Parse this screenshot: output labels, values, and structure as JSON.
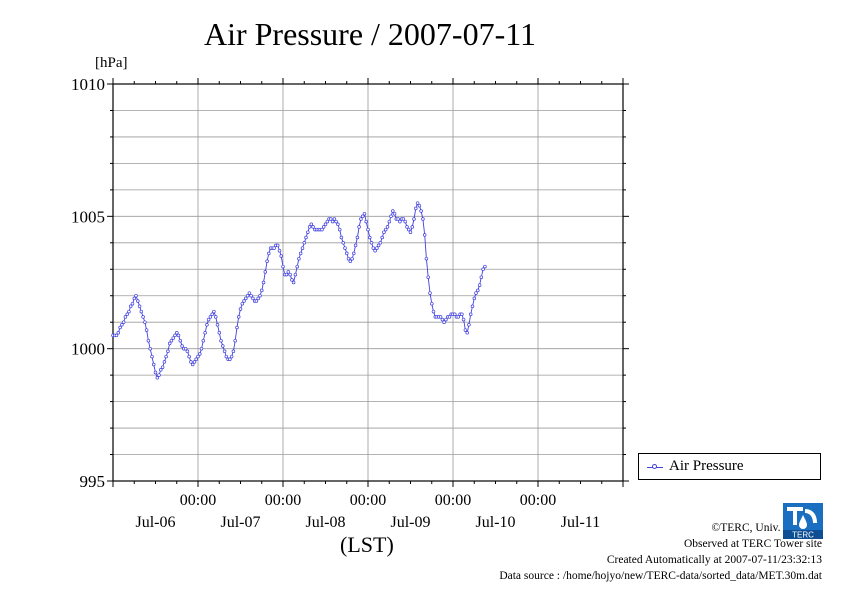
{
  "header": {
    "title": "Air Pressure / 2007-07-11",
    "unit": "[hPa]"
  },
  "legend": {
    "label": "Air Pressure",
    "color": "#4040e0"
  },
  "footer": {
    "xlabel": "(LST)",
    "credits": [
      "©TERC, Univ. Tsukuba",
      "Observed at TERC Tower site",
      "Created Automatically at 2007-07-11/23:32:13",
      "Data source : /home/hojyo/new/TERC-data/sorted_data/MET.30m.dat"
    ],
    "logo_text": "TERC"
  },
  "chart_data": {
    "type": "line",
    "title": "Air Pressure / 2007-07-11",
    "ylabel": "[hPa]",
    "xlabel": "(LST)",
    "ylim": [
      995,
      1010
    ],
    "yticks": [
      995,
      1000,
      1005,
      1010
    ],
    "xlim_hours": [
      0,
      144
    ],
    "xticks": [
      {
        "hour": 24,
        "time": "00:00",
        "date": "Jul-07"
      },
      {
        "hour": 48,
        "time": "00:00",
        "date": "Jul-08"
      },
      {
        "hour": 72,
        "time": "00:00",
        "date": "Jul-09"
      },
      {
        "hour": 96,
        "time": "00:00",
        "date": "Jul-10"
      },
      {
        "hour": 120,
        "time": "00:00",
        "date": "Jul-11"
      }
    ],
    "day_labels": [
      {
        "hour": 12,
        "label": "Jul-06"
      },
      {
        "hour": 36,
        "label": "Jul-07"
      },
      {
        "hour": 60,
        "label": "Jul-08"
      },
      {
        "hour": 84,
        "label": "Jul-09"
      },
      {
        "hour": 108,
        "label": "Jul-10"
      },
      {
        "hour": 132,
        "label": "Jul-11"
      }
    ],
    "grid": true,
    "legend_position": "right",
    "series": [
      {
        "name": "Air Pressure",
        "x_hours_start": 0,
        "x_hours_step": 0.5,
        "values": [
          1000.5,
          1000.5,
          1000.5,
          1000.6,
          1000.8,
          1000.9,
          1001.0,
          1001.2,
          1001.3,
          1001.4,
          1001.6,
          1001.7,
          1001.9,
          1002.0,
          1001.8,
          1001.6,
          1001.4,
          1001.2,
          1001.0,
          1000.7,
          1000.3,
          1000.0,
          999.7,
          999.4,
          999.1,
          998.9,
          999.0,
          999.2,
          999.3,
          999.5,
          999.7,
          999.9,
          1000.2,
          1000.3,
          1000.4,
          1000.5,
          1000.6,
          1000.5,
          1000.3,
          1000.1,
          1000.0,
          1000.0,
          999.9,
          999.7,
          999.5,
          999.4,
          999.5,
          999.6,
          999.7,
          999.8,
          1000.0,
          1000.3,
          1000.6,
          1000.9,
          1001.1,
          1001.2,
          1001.3,
          1001.4,
          1001.2,
          1000.9,
          1000.6,
          1000.3,
          1000.1,
          999.9,
          999.7,
          999.6,
          999.6,
          999.7,
          999.9,
          1000.3,
          1000.8,
          1001.2,
          1001.5,
          1001.7,
          1001.8,
          1001.9,
          1002.0,
          1002.1,
          1002.0,
          1001.9,
          1001.8,
          1001.8,
          1001.9,
          1002.0,
          1002.2,
          1002.5,
          1002.9,
          1003.3,
          1003.6,
          1003.8,
          1003.8,
          1003.8,
          1003.9,
          1003.9,
          1003.7,
          1003.5,
          1003.1,
          1002.8,
          1002.8,
          1002.9,
          1002.8,
          1002.6,
          1002.5,
          1002.8,
          1003.1,
          1003.4,
          1003.6,
          1003.8,
          1004.0,
          1004.2,
          1004.4,
          1004.6,
          1004.7,
          1004.6,
          1004.5,
          1004.5,
          1004.5,
          1004.5,
          1004.5,
          1004.6,
          1004.7,
          1004.8,
          1004.9,
          1004.9,
          1004.8,
          1004.9,
          1004.8,
          1004.7,
          1004.5,
          1004.2,
          1004.0,
          1003.8,
          1003.6,
          1003.4,
          1003.3,
          1003.4,
          1003.6,
          1003.9,
          1004.2,
          1004.6,
          1004.9,
          1005.0,
          1005.1,
          1004.8,
          1004.5,
          1004.2,
          1004.0,
          1003.8,
          1003.7,
          1003.8,
          1003.9,
          1004.0,
          1004.2,
          1004.4,
          1004.5,
          1004.6,
          1004.8,
          1005.0,
          1005.2,
          1005.1,
          1004.9,
          1004.9,
          1004.8,
          1004.9,
          1004.9,
          1004.8,
          1004.6,
          1004.5,
          1004.4,
          1004.6,
          1004.9,
          1005.3,
          1005.5,
          1005.4,
          1005.2,
          1004.9,
          1004.3,
          1003.4,
          1002.7,
          1002.1,
          1001.7,
          1001.4,
          1001.2,
          1001.2,
          1001.2,
          1001.2,
          1001.1,
          1001.0,
          1001.1,
          1001.2,
          1001.2,
          1001.3,
          1001.3,
          1001.3,
          1001.2,
          1001.2,
          1001.3,
          1001.3,
          1001.1,
          1000.7,
          1000.6,
          1000.9,
          1001.3,
          1001.6,
          1001.9,
          1002.1,
          1002.2,
          1002.4,
          1002.7,
          1003.0,
          1003.1
        ]
      }
    ]
  }
}
